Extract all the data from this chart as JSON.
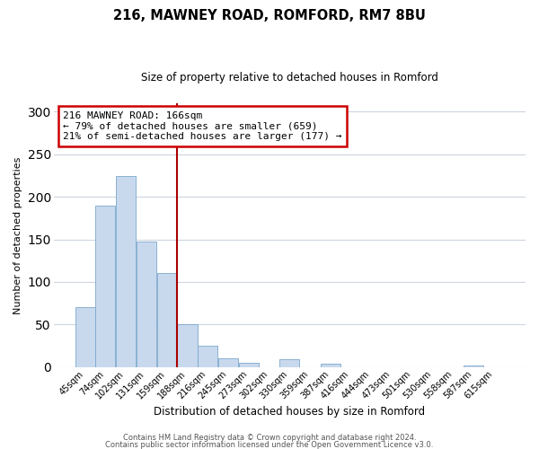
{
  "title": "216, MAWNEY ROAD, ROMFORD, RM7 8BU",
  "subtitle": "Size of property relative to detached houses in Romford",
  "xlabel": "Distribution of detached houses by size in Romford",
  "ylabel": "Number of detached properties",
  "bar_labels": [
    "45sqm",
    "74sqm",
    "102sqm",
    "131sqm",
    "159sqm",
    "188sqm",
    "216sqm",
    "245sqm",
    "273sqm",
    "302sqm",
    "330sqm",
    "359sqm",
    "387sqm",
    "416sqm",
    "444sqm",
    "473sqm",
    "501sqm",
    "530sqm",
    "558sqm",
    "587sqm",
    "615sqm"
  ],
  "bar_values": [
    70,
    190,
    225,
    147,
    111,
    50,
    25,
    10,
    5,
    0,
    9,
    0,
    4,
    0,
    0,
    0,
    0,
    0,
    0,
    2,
    0
  ],
  "bar_color": "#c8d9ee",
  "bar_edge_color": "#7ba7cc",
  "vline_x": 4.5,
  "vline_color": "#aa0000",
  "annotation_text": "216 MAWNEY ROAD: 166sqm\n← 79% of detached houses are smaller (659)\n21% of semi-detached houses are larger (177) →",
  "annotation_box_color": "#cc0000",
  "ylim": [
    0,
    310
  ],
  "yticks": [
    0,
    50,
    100,
    150,
    200,
    250,
    300
  ],
  "footer1": "Contains HM Land Registry data © Crown copyright and database right 2024.",
  "footer2": "Contains public sector information licensed under the Open Government Licence v3.0.",
  "background_color": "#ffffff",
  "grid_color": "#ccd5e0"
}
